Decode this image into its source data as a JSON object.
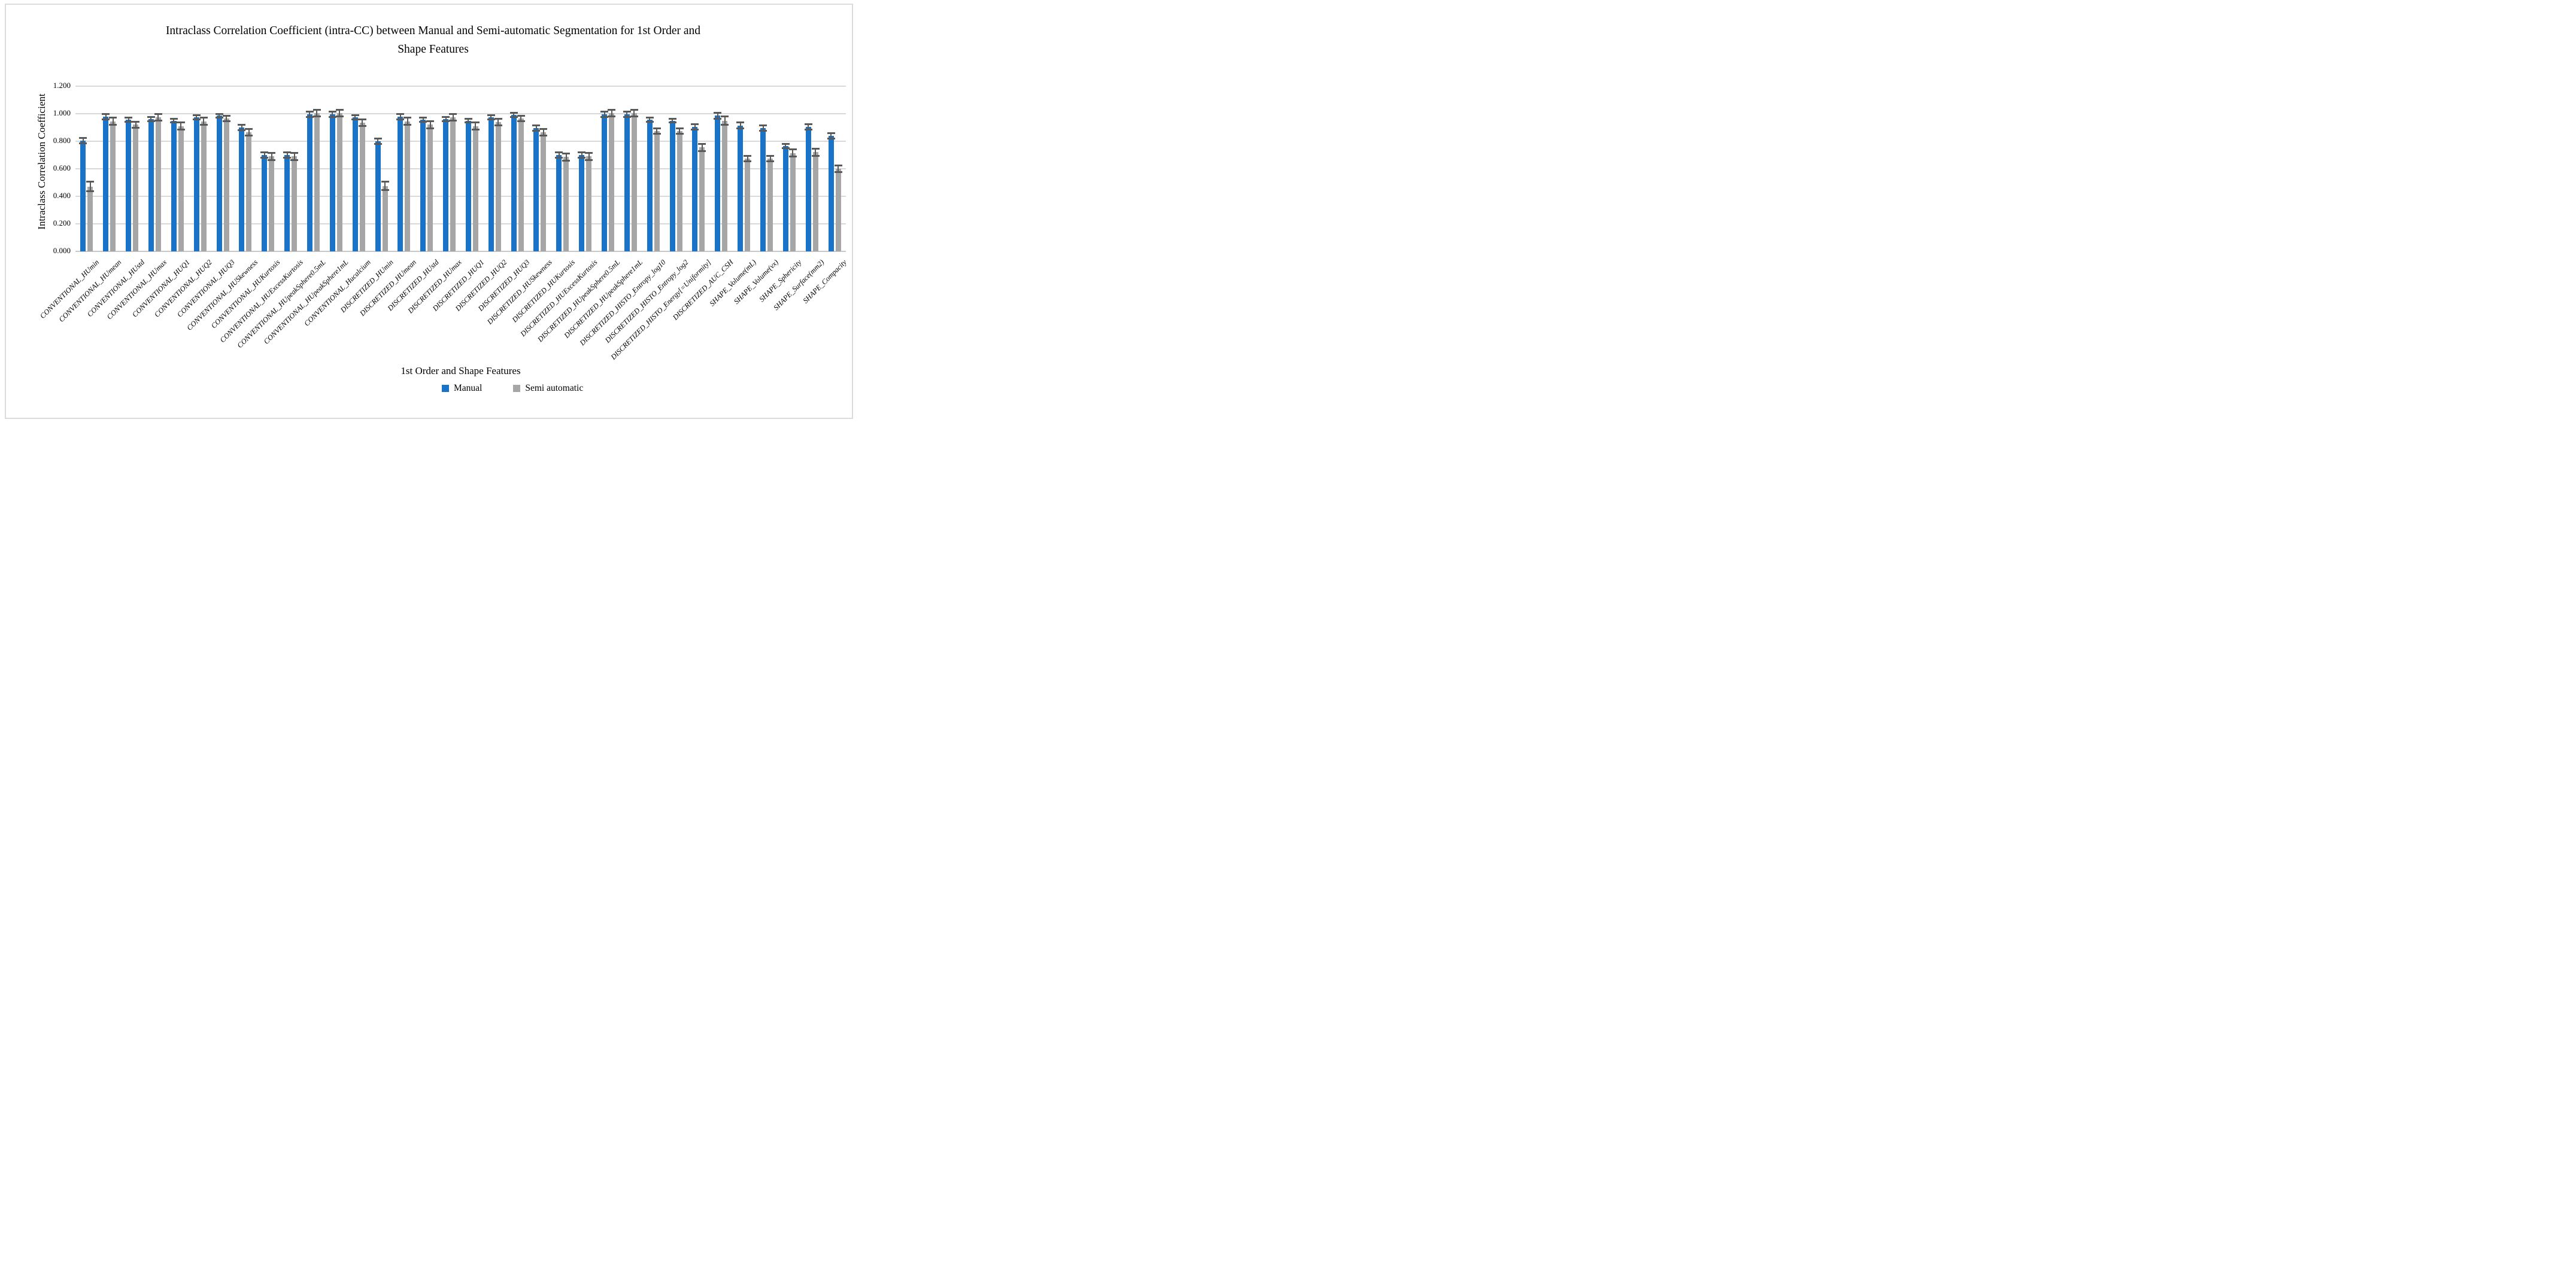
{
  "page": {
    "background": "#FFFFFF",
    "frame_border_color": "#DBDBDB"
  },
  "chart_data": {
    "type": "bar",
    "title_lines": {
      "line1": "Intraclass Correlation Coefficient (intra-CC) between Manual and Semi-automatic Segmentation for 1st Order and",
      "line2": "Shape Features"
    },
    "title": "Intraclass Correlation Coefficient (intra-CC) between Manual and Semi-automatic Segmentation for 1st Order and Shape Features",
    "xlabel": "1st Order and Shape Features",
    "ylabel": "Intraclass Correlation Coefficient",
    "ylim": [
      0,
      1.2
    ],
    "ytick_labels": [
      "0.000",
      "0.200",
      "0.400",
      "0.600",
      "0.800",
      "1.000",
      "1.200"
    ],
    "grid": true,
    "legend_position": "bottom",
    "gridline_color": "#D9D9D9",
    "axis_line_color": "#C8C8C8",
    "error_bar_color": "#595959",
    "categories": [
      "CONVENTIONAL_HUmin",
      "CONVENTIONAL_HUmean",
      "CONVENTIONAL_HUstd",
      "CONVENTIONAL_HUmax",
      "CONVENTIONAL_HUQ1",
      "CONVENTIONAL_HUQ2",
      "CONVENTIONAL_HUQ3",
      "CONVENTIONAL_HUSkewness",
      "CONVENTIONAL_HUKurtosis",
      "CONVENTIONAL_HUExcessKurtosis",
      "CONVENTIONAL_HUpeakSphere0.5mL",
      "CONVENTIONAL_HUpeakSphere1mL",
      "CONVENTIONAL_Hucalcium",
      "DISCRETIZED_HUmin",
      "DISCRETIZED_HUmean",
      "DISCRETIZED_HUstd",
      "DISCRETIZED_HUmax",
      "DISCRETIZED_HUQ1",
      "DISCRETIZED_HUQ2",
      "DISCRETIZED_HUQ3",
      "DISCRETIZED_HUSkewness",
      "DISCRETIZED_HUKurtosis",
      "DISCRETIZED_HUExcessKurtosis",
      "DISCRETIZED_HUpeakSphere0.5mL",
      "DISCRETIZED_HUpeakSphere1mL",
      "DISCRETIZED_HISTO_Entropy_log10",
      "DISCRETIZED_HISTO_Entropy_log2",
      "DISCRETIZED_HISTO_Energy[=Uniformity]",
      "DISCRETIZED_AUC_CSH",
      "SHAPE_Volume(mL)",
      "SHAPE_Volume(vx)",
      "SHAPE_Sphericity",
      "SHAPE_Surface(mm2)",
      "SHAPE_Compacity"
    ],
    "series": [
      {
        "name": "Manual",
        "color": "#1873C9",
        "values": [
          0.805,
          0.98,
          0.955,
          0.96,
          0.95,
          0.975,
          0.985,
          0.9,
          0.7,
          0.7,
          0.995,
          0.995,
          0.975,
          0.8,
          0.98,
          0.955,
          0.96,
          0.95,
          0.975,
          0.99,
          0.895,
          0.7,
          0.7,
          0.995,
          0.995,
          0.955,
          0.95,
          0.905,
          0.985,
          0.915,
          0.895,
          0.765,
          0.905,
          0.84
        ],
        "errors": [
          0.02,
          0.02,
          0.015,
          0.015,
          0.015,
          0.015,
          0.015,
          0.02,
          0.02,
          0.02,
          0.02,
          0.02,
          0.015,
          0.02,
          0.02,
          0.015,
          0.015,
          0.015,
          0.015,
          0.015,
          0.02,
          0.02,
          0.02,
          0.02,
          0.02,
          0.015,
          0.015,
          0.02,
          0.02,
          0.02,
          0.02,
          0.015,
          0.02,
          0.02
        ]
      },
      {
        "name": "Semi automatic",
        "color": "#A6A6A6",
        "values": [
          0.47,
          0.945,
          0.92,
          0.975,
          0.91,
          0.945,
          0.965,
          0.865,
          0.69,
          0.69,
          1.005,
          1.005,
          0.935,
          0.475,
          0.945,
          0.92,
          0.975,
          0.91,
          0.94,
          0.965,
          0.865,
          0.685,
          0.69,
          1.005,
          1.005,
          0.875,
          0.875,
          0.755,
          0.95,
          0.675,
          0.675,
          0.715,
          0.72,
          0.6
        ],
        "errors": [
          0.035,
          0.025,
          0.02,
          0.025,
          0.025,
          0.025,
          0.02,
          0.025,
          0.025,
          0.025,
          0.025,
          0.025,
          0.025,
          0.03,
          0.025,
          0.025,
          0.025,
          0.025,
          0.025,
          0.02,
          0.025,
          0.025,
          0.025,
          0.025,
          0.025,
          0.02,
          0.02,
          0.025,
          0.03,
          0.02,
          0.02,
          0.025,
          0.025,
          0.025
        ]
      }
    ]
  }
}
